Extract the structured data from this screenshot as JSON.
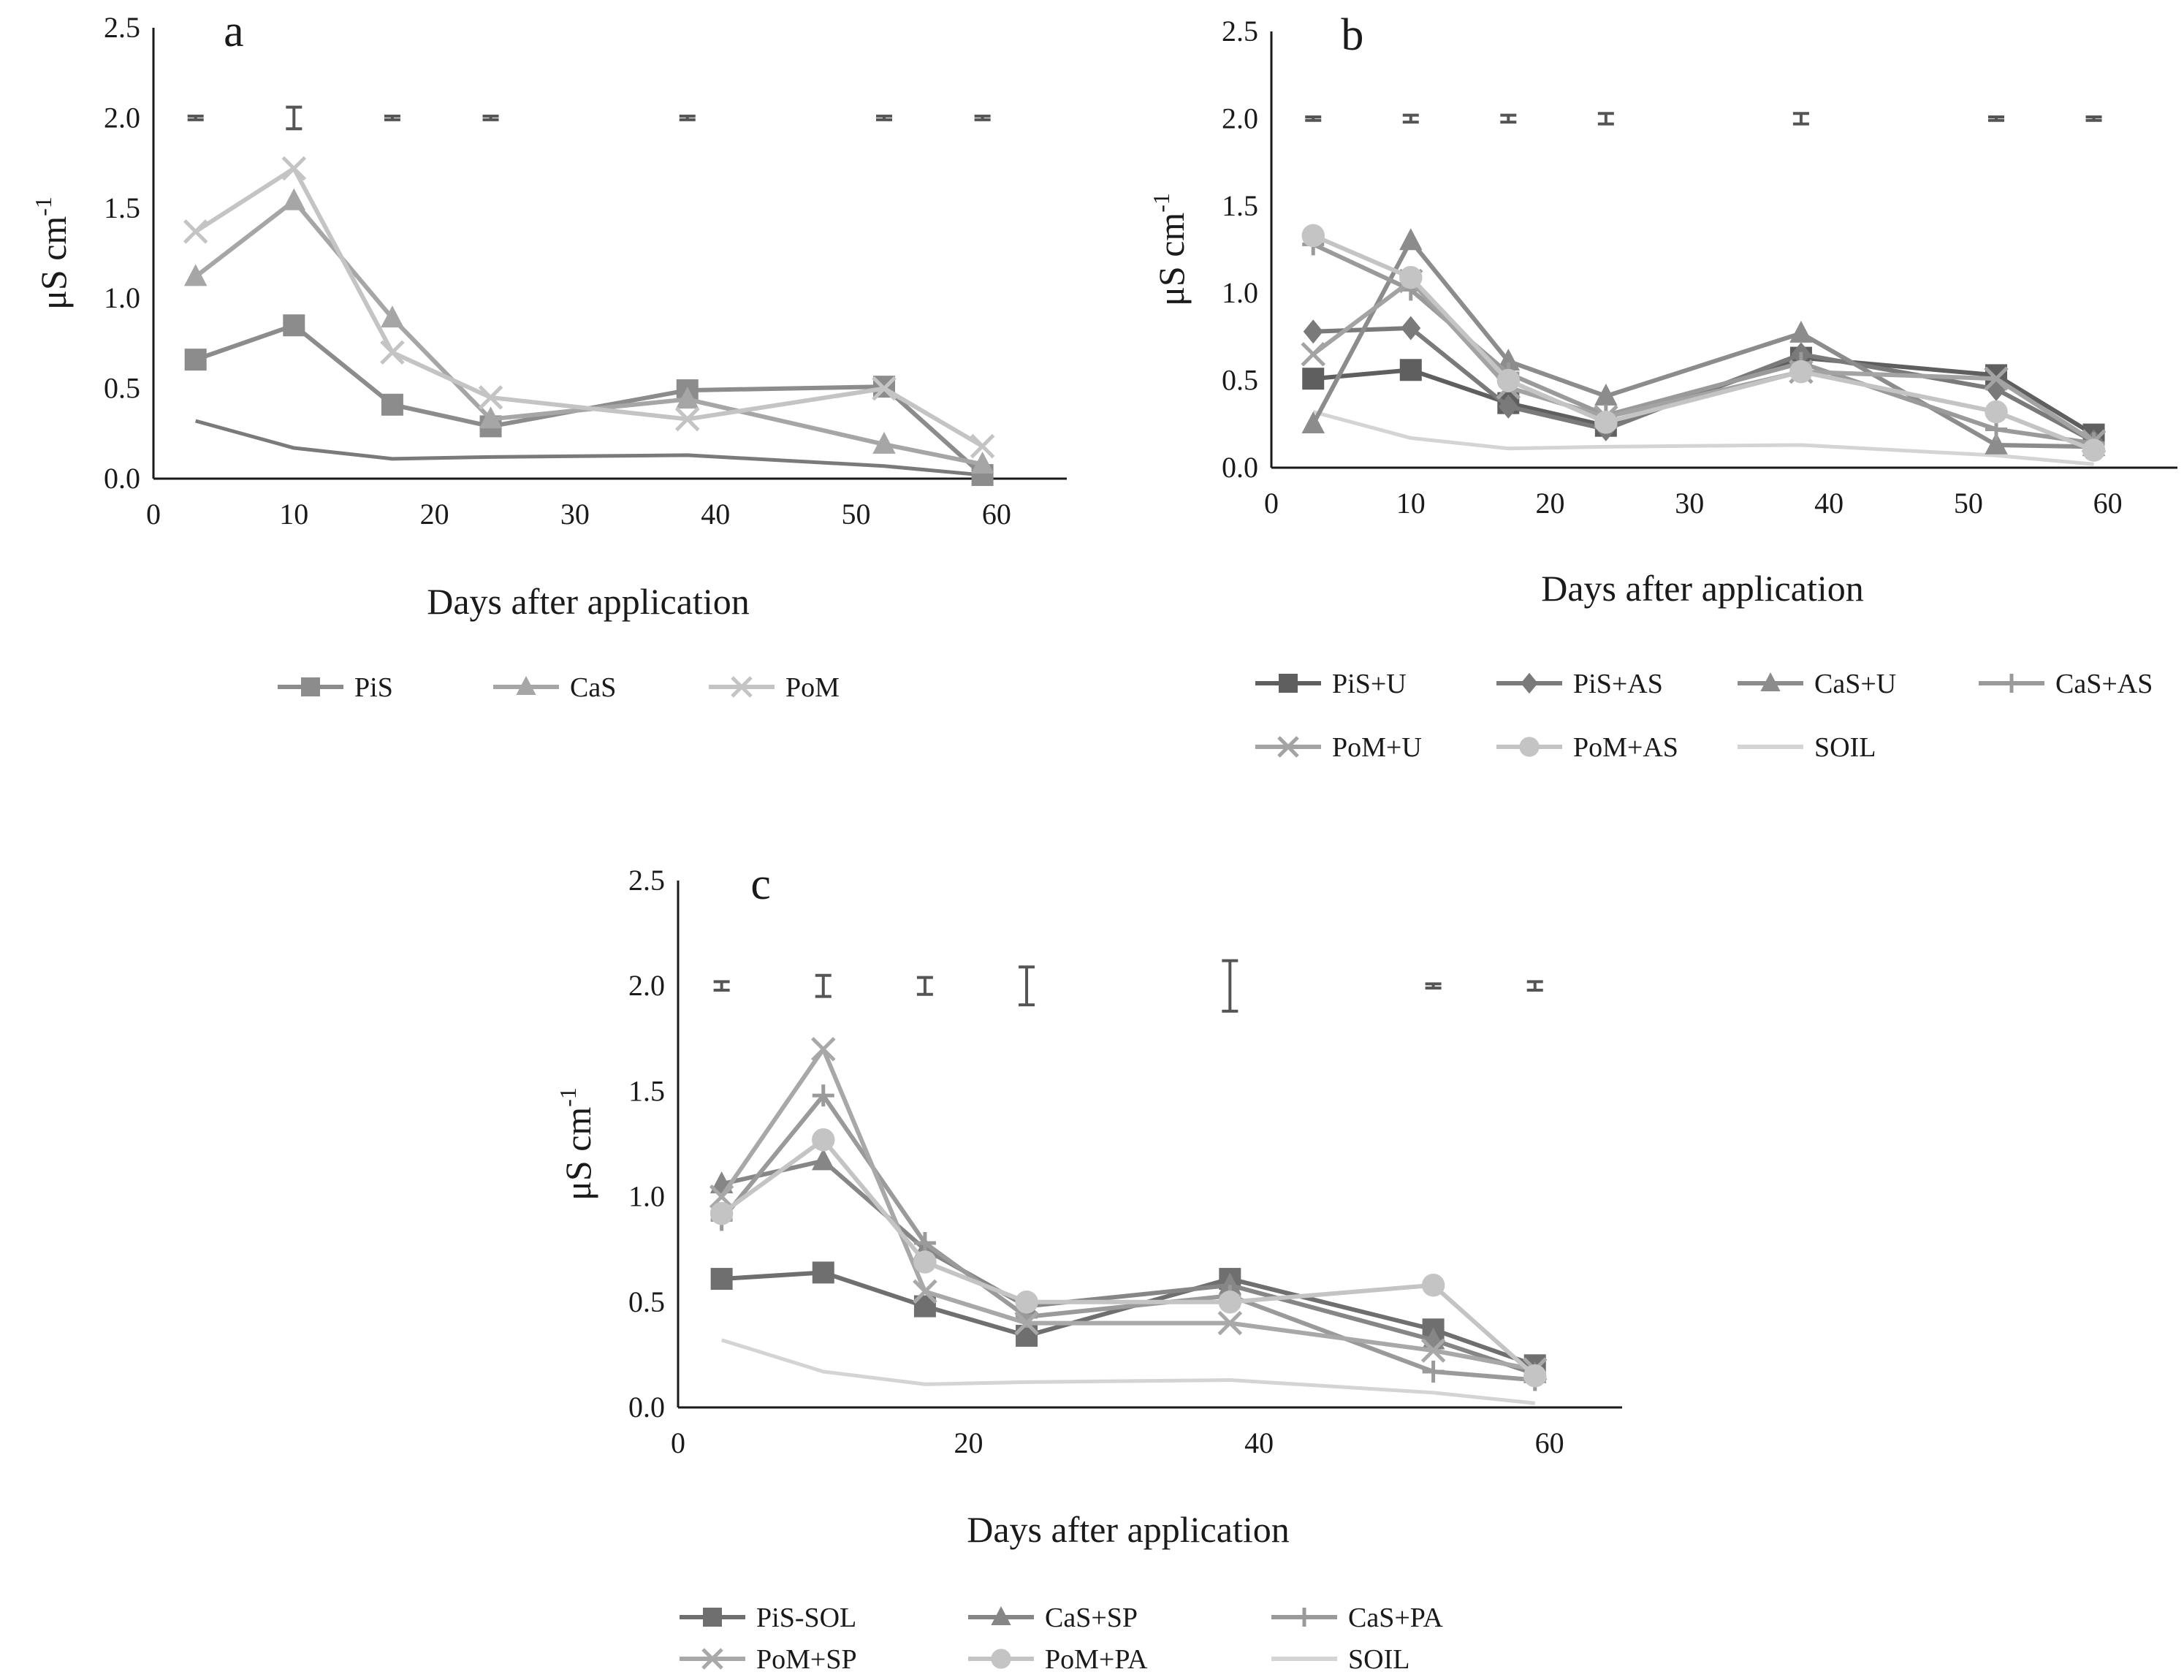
{
  "chart_data": [
    {
      "type": "line",
      "panel_label": "a",
      "xlabel": "Days after application",
      "ylabel": "μS cm",
      "ylabel_sup": "-1",
      "xlim": [
        0,
        65
      ],
      "ylim": [
        0,
        2.5
      ],
      "x_ticks": [
        "0",
        "10",
        "20",
        "30",
        "40",
        "50",
        "60"
      ],
      "y_ticks": [
        "0.0",
        "0.5",
        "1.0",
        "1.5",
        "2.0",
        "2.5"
      ],
      "legend_position": "bottom",
      "error_bars": {
        "y": 2.0,
        "x": [
          3,
          10,
          17,
          24,
          38,
          52,
          59
        ],
        "half": [
          0.01,
          0.06,
          0.01,
          0.01,
          0.01,
          0.01,
          0.01
        ]
      },
      "series": [
        {
          "name": "PiS",
          "marker": "square",
          "color": "#8c8c8c",
          "x": [
            3,
            10,
            17,
            24,
            38,
            52,
            59
          ],
          "y": [
            0.66,
            0.85,
            0.41,
            0.29,
            0.49,
            0.51,
            0.02
          ],
          "legend": true
        },
        {
          "name": "CaS",
          "marker": "triangle",
          "color": "#a6a6a6",
          "x": [
            3,
            10,
            17,
            24,
            38,
            52,
            59
          ],
          "y": [
            1.12,
            1.54,
            0.89,
            0.33,
            0.44,
            0.19,
            0.08
          ],
          "legend": true
        },
        {
          "name": "PoM",
          "marker": "x",
          "color": "#c4c4c4",
          "x": [
            3,
            10,
            17,
            24,
            38,
            52,
            59
          ],
          "y": [
            1.37,
            1.72,
            0.7,
            0.45,
            0.33,
            0.5,
            0.18
          ],
          "legend": true
        },
        {
          "name": "SOIL",
          "marker": "none",
          "color": "#7a7a7a",
          "x": [
            3,
            10,
            17,
            24,
            38,
            52,
            59
          ],
          "y": [
            0.32,
            0.17,
            0.11,
            0.12,
            0.13,
            0.07,
            0.02
          ],
          "legend": false
        }
      ]
    },
    {
      "type": "line",
      "panel_label": "b",
      "xlabel": "Days after application",
      "ylabel": "μS cm",
      "ylabel_sup": "-1",
      "xlim": [
        0,
        65
      ],
      "ylim": [
        0,
        2.5
      ],
      "x_ticks": [
        "0",
        "10",
        "20",
        "30",
        "40",
        "50",
        "60"
      ],
      "y_ticks": [
        "0.0",
        "0.5",
        "1.0",
        "1.5",
        "2.0",
        "2.5"
      ],
      "legend_position": "bottom",
      "error_bars": {
        "y": 2.0,
        "x": [
          3,
          10,
          17,
          24,
          38,
          52,
          59
        ],
        "half": [
          0.01,
          0.02,
          0.02,
          0.03,
          0.03,
          0.01,
          0.01
        ]
      },
      "series": [
        {
          "name": "PiS+U",
          "marker": "square",
          "color": "#5f5f5f",
          "x": [
            3,
            10,
            17,
            24,
            38,
            52,
            59
          ],
          "y": [
            0.51,
            0.56,
            0.37,
            0.24,
            0.63,
            0.53,
            0.19
          ],
          "legend": true
        },
        {
          "name": "PiS+AS",
          "marker": "diamond",
          "color": "#7a7a7a",
          "x": [
            3,
            10,
            17,
            24,
            38,
            52,
            59
          ],
          "y": [
            0.78,
            0.8,
            0.35,
            0.22,
            0.65,
            0.45,
            0.15
          ],
          "legend": true
        },
        {
          "name": "CaS+U",
          "marker": "triangle",
          "color": "#8c8c8c",
          "x": [
            3,
            10,
            17,
            24,
            38,
            52,
            59
          ],
          "y": [
            0.25,
            1.3,
            0.61,
            0.41,
            0.77,
            0.13,
            0.12
          ],
          "legend": true
        },
        {
          "name": "CaS+AS",
          "marker": "plus",
          "color": "#9a9a9a",
          "x": [
            3,
            10,
            17,
            24,
            38,
            52,
            59
          ],
          "y": [
            1.28,
            1.02,
            0.54,
            0.3,
            0.6,
            0.22,
            0.14
          ],
          "legend": true
        },
        {
          "name": "PoM+U",
          "marker": "x",
          "color": "#a3a3a3",
          "x": [
            3,
            10,
            17,
            24,
            38,
            52,
            59
          ],
          "y": [
            0.65,
            1.07,
            0.46,
            0.29,
            0.55,
            0.51,
            0.15
          ],
          "legend": true
        },
        {
          "name": "PoM+AS",
          "marker": "circle",
          "color": "#c4c4c4",
          "x": [
            3,
            10,
            17,
            24,
            38,
            52,
            59
          ],
          "y": [
            1.33,
            1.09,
            0.5,
            0.26,
            0.55,
            0.32,
            0.1
          ],
          "legend": true
        },
        {
          "name": "SOIL",
          "marker": "none",
          "color": "#d4d4d4",
          "x": [
            3,
            10,
            17,
            24,
            38,
            52,
            59
          ],
          "y": [
            0.32,
            0.17,
            0.11,
            0.12,
            0.13,
            0.07,
            0.02
          ],
          "legend": true
        }
      ]
    },
    {
      "type": "line",
      "panel_label": "c",
      "xlabel": "Days after application",
      "ylabel": "μS cm",
      "ylabel_sup": "-1",
      "xlim": [
        0,
        65
      ],
      "ylim": [
        0,
        2.5
      ],
      "x_ticks": [
        "0",
        "20",
        "40",
        "60"
      ],
      "y_ticks": [
        "0.0",
        "0.5",
        "1.0",
        "1.5",
        "2.0",
        "2.5"
      ],
      "legend_position": "bottom",
      "error_bars": {
        "y": 2.0,
        "x": [
          3,
          10,
          17,
          24,
          38,
          52,
          59
        ],
        "half": [
          0.02,
          0.05,
          0.04,
          0.09,
          0.12,
          0.01,
          0.02
        ]
      },
      "series": [
        {
          "name": "PiS-SOL",
          "marker": "square",
          "color": "#6f6f6f",
          "x": [
            3,
            10,
            17,
            24,
            38,
            52,
            59
          ],
          "y": [
            0.61,
            0.64,
            0.48,
            0.34,
            0.61,
            0.37,
            0.2
          ],
          "legend": true
        },
        {
          "name": "CaS+SP",
          "marker": "triangle",
          "color": "#868686",
          "x": [
            3,
            10,
            17,
            24,
            38,
            52,
            59
          ],
          "y": [
            1.06,
            1.17,
            0.75,
            0.48,
            0.58,
            0.32,
            0.16
          ],
          "legend": true
        },
        {
          "name": "CaS+PA",
          "marker": "plus",
          "color": "#9a9a9a",
          "x": [
            3,
            10,
            17,
            24,
            38,
            52,
            59
          ],
          "y": [
            0.89,
            1.48,
            0.78,
            0.43,
            0.53,
            0.17,
            0.13
          ],
          "legend": true
        },
        {
          "name": "PoM+SP",
          "marker": "x",
          "color": "#a8a8a8",
          "x": [
            3,
            10,
            17,
            24,
            38,
            52,
            59
          ],
          "y": [
            1.0,
            1.7,
            0.55,
            0.4,
            0.4,
            0.27,
            0.18
          ],
          "legend": true
        },
        {
          "name": "PoM+PA",
          "marker": "circle",
          "color": "#c4c4c4",
          "x": [
            3,
            10,
            17,
            24,
            38,
            52,
            59
          ],
          "y": [
            0.92,
            1.27,
            0.69,
            0.5,
            0.5,
            0.58,
            0.15
          ],
          "legend": true
        },
        {
          "name": "SOIL",
          "marker": "none",
          "color": "#d4d4d4",
          "x": [
            3,
            10,
            17,
            24,
            38,
            52,
            59
          ],
          "y": [
            0.32,
            0.17,
            0.11,
            0.12,
            0.13,
            0.07,
            0.02
          ],
          "legend": true
        }
      ]
    }
  ]
}
